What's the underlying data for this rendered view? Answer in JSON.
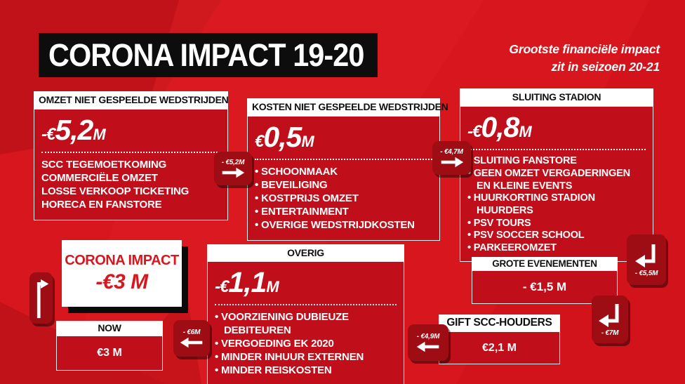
{
  "page": {
    "title": "CORONA IMPACT 19-20",
    "subtitle_line1": "Grootste financiële impact",
    "subtitle_line2": "zit in seizoen 20-21"
  },
  "colors": {
    "background_red": "#d7161e",
    "panel_red": "#c00f1b",
    "badge_red": "#9e0d13",
    "black": "#0d0d0d",
    "white": "#ffffff"
  },
  "boxes": {
    "omzet": {
      "header": "OMZET NIET GESPEELDE WEDSTRIJDEN",
      "value_prefix": "-€",
      "value_amount": "5,2",
      "value_suffix": "M",
      "items": [
        "SCC TEGEMOETKOMING",
        "COMMERCIËLE OMZET",
        "LOSSE VERKOOP TICKETING",
        "HORECA EN FANSTORE"
      ]
    },
    "kosten": {
      "header": "KOSTEN NIET GESPEELDE WEDSTRIJDEN",
      "value_prefix": "€",
      "value_amount": "0,5",
      "value_suffix": "M",
      "items": [
        "SCHOONMAAK",
        "BEVEILIGING",
        "KOSTPRIJS OMZET",
        "ENTERTAINMENT",
        "OVERIGE WEDSTRIJDKOSTEN"
      ]
    },
    "sluiting": {
      "header": "SLUITING STADION",
      "value_prefix": "-€",
      "value_amount": "0,8",
      "value_suffix": "M",
      "items": [
        "SLUITING FANSTORE",
        "GEEN OMZET VERGADERINGEN EN KLEINE EVENTS",
        "HUURKORTING STADION HUURDERS",
        "PSV TOURS",
        "PSV SOCCER SCHOOL",
        "PARKEEROMZET"
      ]
    },
    "overig": {
      "header": "OVERIG",
      "value_prefix": "-€",
      "value_amount": "1,1",
      "value_suffix": "M",
      "items": [
        "VOORZIENING DUBIEUZE DEBITEUREN",
        "VERGOEDING EK 2020",
        "MINDER INHUUR EXTERNEN",
        "MINDER REISKOSTEN"
      ]
    },
    "corona_impact": {
      "line1": "CORONA IMPACT",
      "line2": "-€3 M"
    },
    "grote": {
      "header": "GROTE EVENEMENTEN",
      "value": "- €1,5 M"
    },
    "gift": {
      "header": "GIFT SCC-HOUDERS",
      "value": "€2,1 M"
    },
    "now": {
      "header": "NOW",
      "value": "€3 M"
    }
  },
  "badges": [
    {
      "label": "- €5,2M",
      "direction": "right"
    },
    {
      "label": "- €4,7M",
      "direction": "right"
    },
    {
      "label": "- €5,5M",
      "direction": "down-left"
    },
    {
      "label": "- €7M",
      "direction": "down-left"
    },
    {
      "label": "- €6M",
      "direction": "left"
    },
    {
      "label": "- €4,9M",
      "direction": "left"
    },
    {
      "label": "",
      "direction": "up-right"
    }
  ]
}
